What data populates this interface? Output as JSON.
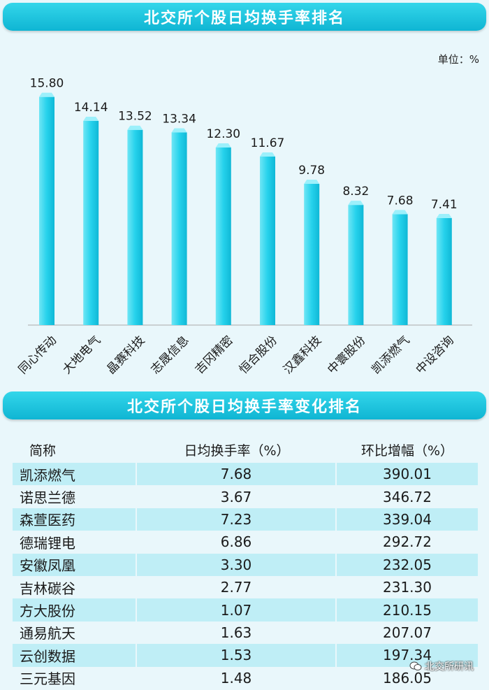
{
  "header_top": {
    "title": "北交所个股日均换手率排名"
  },
  "unit": "单位：%",
  "chart_data": {
    "type": "bar",
    "title": "北交所个股日均换手率排名",
    "categories": [
      "同心传动",
      "大地电气",
      "晶赛科技",
      "志晟信息",
      "吉冈精密",
      "恒合股份",
      "汉鑫科技",
      "中寰股份",
      "凯添燃气",
      "中设咨询"
    ],
    "values": [
      15.8,
      14.14,
      13.52,
      13.34,
      12.3,
      11.67,
      9.78,
      8.32,
      7.68,
      7.41
    ],
    "value_labels": [
      "15.80",
      "14.14",
      "13.52",
      "13.34",
      "12.30",
      "11.67",
      "9.78",
      "8.32",
      "7.68",
      "7.41"
    ],
    "ylabel": "",
    "xlabel": "",
    "ylim": [
      0,
      16
    ],
    "grid": false,
    "bar_color": "#26d2ec"
  },
  "header_bottom": {
    "title": "北交所个股日均换手率变化排名"
  },
  "table": {
    "columns": [
      "简称",
      "日均换手率（%）",
      "环比增幅（%）"
    ],
    "rows": [
      [
        "凯添燃气",
        "7.68",
        "390.01"
      ],
      [
        "诺思兰德",
        "3.67",
        "346.72"
      ],
      [
        "森萱医药",
        "7.23",
        "339.04"
      ],
      [
        "德瑞锂电",
        "6.86",
        "292.72"
      ],
      [
        "安徽凤凰",
        "3.30",
        "232.05"
      ],
      [
        "吉林碳谷",
        "2.77",
        "231.30"
      ],
      [
        "方大股份",
        "1.07",
        "210.15"
      ],
      [
        "通易航天",
        "1.63",
        "207.07"
      ],
      [
        "云创数据",
        "1.53",
        "197.34"
      ],
      [
        "三元基因",
        "1.48",
        "186.05"
      ]
    ]
  },
  "watermark": {
    "text": "北交所研讯",
    "icon": "wechat-icon"
  }
}
